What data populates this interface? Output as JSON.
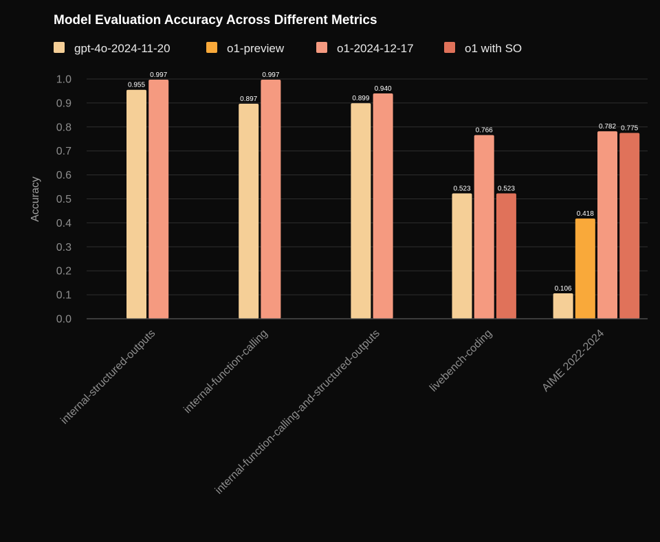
{
  "chart_data": {
    "type": "bar",
    "title": "Model Evaluation Accuracy Across Different Metrics",
    "xlabel": "",
    "ylabel": "Accuracy",
    "ylim": [
      0,
      1.0
    ],
    "yticks": [
      "0.0",
      "0.1",
      "0.2",
      "0.3",
      "0.4",
      "0.5",
      "0.6",
      "0.7",
      "0.8",
      "0.9",
      "1.0"
    ],
    "grid": true,
    "legend_position": "top",
    "categories": [
      "internal-structured-outputs",
      "internal-function-calling",
      "internal-function-calling-and-structured-outputs",
      "livebench-coding",
      "AIME 2022-2024"
    ],
    "series": [
      {
        "name": "gpt-4o-2024-11-20",
        "color": "#f5cf97",
        "values": [
          0.955,
          0.897,
          0.899,
          0.523,
          0.106
        ],
        "labels": [
          "0.955",
          "0.897",
          "0.899",
          "0.523",
          "0.106"
        ]
      },
      {
        "name": "o1-preview",
        "color": "#f9a93a",
        "values": [
          null,
          null,
          null,
          null,
          0.418
        ],
        "labels": [
          null,
          null,
          null,
          null,
          "0.418"
        ]
      },
      {
        "name": "o1-2024-12-17",
        "color": "#f59a80",
        "values": [
          0.997,
          0.997,
          0.94,
          0.766,
          0.782
        ],
        "labels": [
          "0.997",
          "0.997",
          "0.940",
          "0.766",
          "0.782"
        ]
      },
      {
        "name": "o1 with SO",
        "color": "#e0725a",
        "values": [
          null,
          null,
          null,
          0.523,
          0.775
        ],
        "labels": [
          null,
          null,
          null,
          "0.523",
          "0.775"
        ]
      }
    ]
  }
}
